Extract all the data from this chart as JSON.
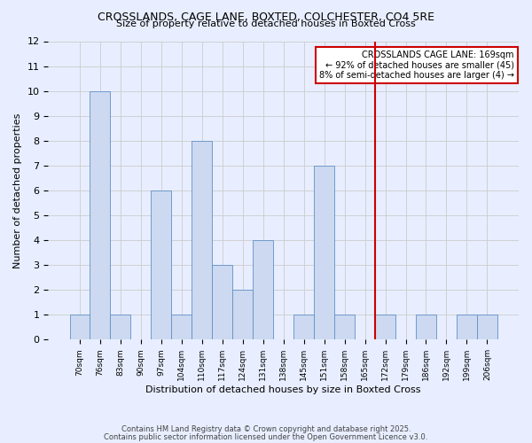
{
  "title": "CROSSLANDS, CAGE LANE, BOXTED, COLCHESTER, CO4 5RE",
  "subtitle": "Size of property relative to detached houses in Boxted Cross",
  "xlabel": "Distribution of detached houses by size in Boxted Cross",
  "ylabel": "Number of detached properties",
  "categories": [
    "70sqm",
    "76sqm",
    "83sqm",
    "90sqm",
    "97sqm",
    "104sqm",
    "110sqm",
    "117sqm",
    "124sqm",
    "131sqm",
    "138sqm",
    "145sqm",
    "151sqm",
    "158sqm",
    "165sqm",
    "172sqm",
    "179sqm",
    "186sqm",
    "192sqm",
    "199sqm",
    "206sqm"
  ],
  "values": [
    1,
    10,
    1,
    0,
    6,
    1,
    8,
    3,
    2,
    4,
    0,
    1,
    7,
    1,
    0,
    1,
    0,
    1,
    0,
    1,
    1
  ],
  "bar_color": "#ccd9f0",
  "bar_edge_color": "#6090c8",
  "grid_color": "#cccccc",
  "background_color": "#e8eeff",
  "vline_x_index": 14.5,
  "vline_color": "#cc0000",
  "annotation_title": "CROSSLANDS CAGE LANE: 169sqm",
  "annotation_line1": "← 92% of detached houses are smaller (45)",
  "annotation_line2": "8% of semi-detached houses are larger (4) →",
  "annotation_box_edgecolor": "#cc0000",
  "ylim": [
    0,
    12
  ],
  "yticks": [
    0,
    1,
    2,
    3,
    4,
    5,
    6,
    7,
    8,
    9,
    10,
    11,
    12
  ],
  "footnote1": "Contains HM Land Registry data © Crown copyright and database right 2025.",
  "footnote2": "Contains public sector information licensed under the Open Government Licence v3.0."
}
